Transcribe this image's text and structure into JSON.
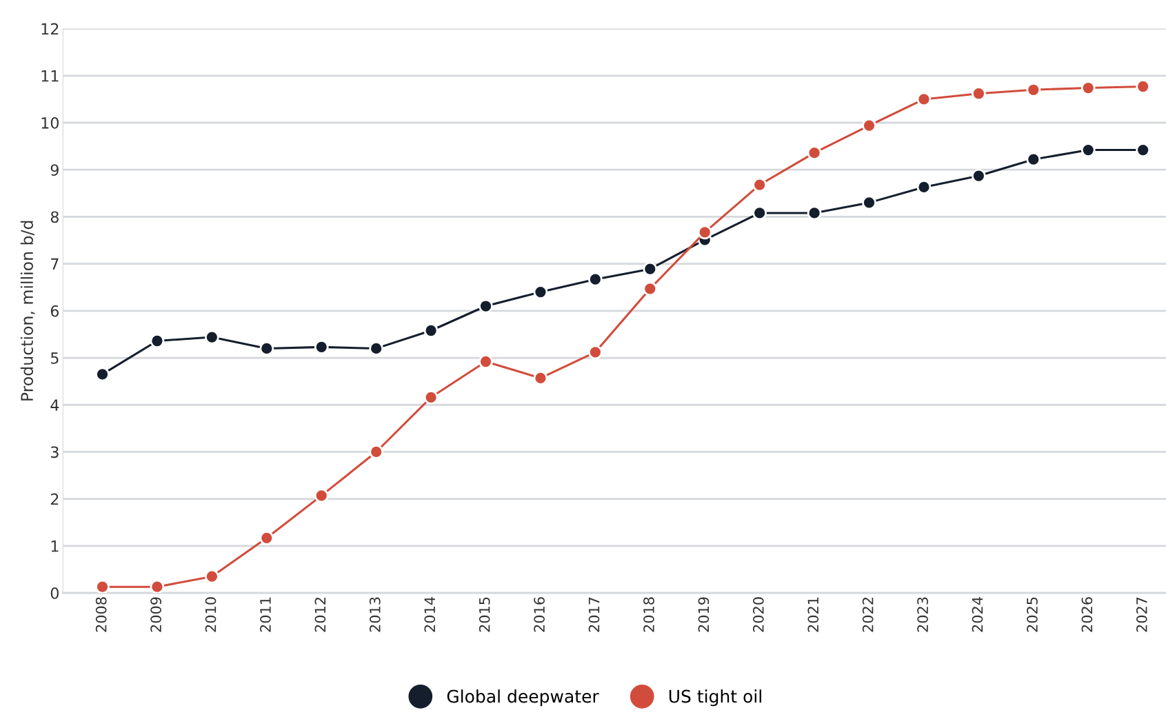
{
  "chart_data": {
    "type": "line",
    "ylabel": "Production, million b/d",
    "categories": [
      "2008",
      "2009",
      "2010",
      "2011",
      "2012",
      "2013",
      "2014",
      "2015",
      "2016",
      "2017",
      "2018",
      "2019",
      "2020",
      "2021",
      "2022",
      "2023",
      "2024",
      "2025",
      "2026",
      "2027"
    ],
    "series": [
      {
        "name": "Global deepwater",
        "color": "#141e2d",
        "values": [
          4.65,
          5.36,
          5.44,
          5.2,
          5.23,
          5.2,
          5.58,
          6.1,
          6.4,
          6.67,
          6.89,
          7.51,
          8.08,
          8.08,
          8.3,
          8.63,
          8.87,
          9.22,
          9.42,
          9.42
        ]
      },
      {
        "name": "US tight oil",
        "color": "#d24c3c",
        "values": [
          0.13,
          0.13,
          0.35,
          1.17,
          2.07,
          3.0,
          4.16,
          4.92,
          4.57,
          5.12,
          6.47,
          7.67,
          8.68,
          9.36,
          9.94,
          10.5,
          10.62,
          10.7,
          10.74,
          10.77
        ]
      }
    ],
    "ylim": [
      0,
      12
    ],
    "yticks": [
      0,
      1,
      2,
      3,
      4,
      5,
      6,
      7,
      8,
      9,
      10,
      11,
      12
    ],
    "grid": "y",
    "legend": "bottom",
    "marker": "circle",
    "line_style": "solid"
  }
}
